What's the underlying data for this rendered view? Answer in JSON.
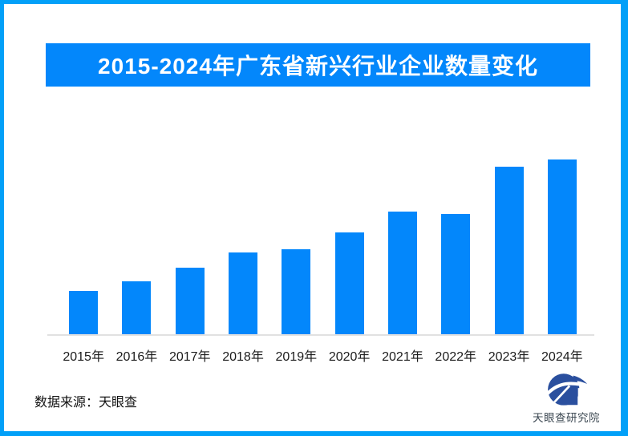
{
  "frame": {
    "border_color": "#02A0F8",
    "background": "#FFFFFF"
  },
  "banner": {
    "title": "2015-2024年广东省新兴行业企业数量变化",
    "background": "#0387FB",
    "text_color": "#FFFFFF"
  },
  "chart_data": {
    "type": "bar",
    "title": "2015-2024年广东省新兴行业企业数量变化",
    "categories": [
      "2015年",
      "2016年",
      "2017年",
      "2018年",
      "2019年",
      "2020年",
      "2021年",
      "2022年",
      "2023年",
      "2024年"
    ],
    "values": [
      24.8,
      30.3,
      38.1,
      46.8,
      48.6,
      58.3,
      70.2,
      68.8,
      95.9,
      100
    ],
    "values_unit": "relative bar height, % of tallest (2024) bar — chart displays no numeric value axis or data labels",
    "bar_color": "#0387FB",
    "axis_line_color": "#E1E1E1",
    "tick_label_color": "#1B1B1B",
    "grid": false,
    "legend": false,
    "xlabel": "",
    "ylabel": ""
  },
  "footer": {
    "source_label": "数据来源：天眼查",
    "brand_name": "天眼查研究院",
    "logo_icon": "tianyancha-swoosh-house-icon",
    "logo_color": "#2A4F9E",
    "brand_text_color": "#3C4852"
  }
}
